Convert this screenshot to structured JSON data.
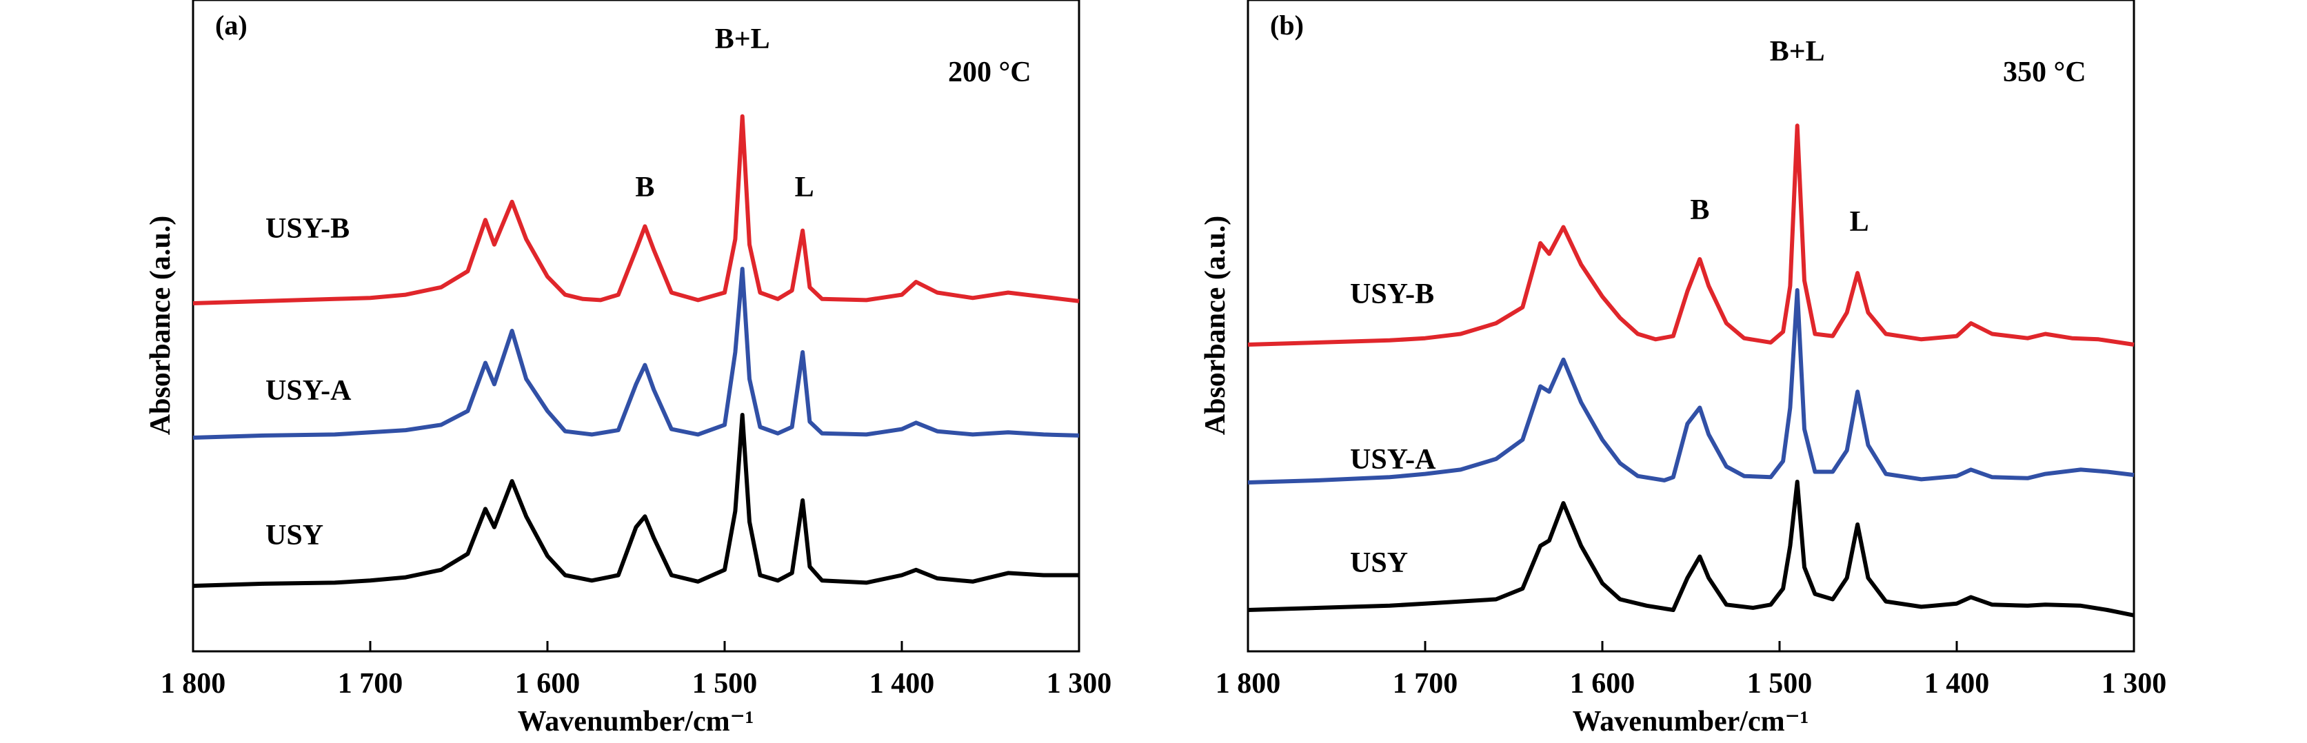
{
  "chart_data": [
    {
      "type": "line",
      "panel_label": "(a)",
      "temperature": "200 °C",
      "xlabel": "Wavenumber/cm⁻¹",
      "ylabel": "Absorbance (a.u.)",
      "xlim": [
        1800,
        1300
      ],
      "x_reversed": true,
      "grid": false,
      "x_ticks": [
        "1 800",
        "1 700",
        "1 600",
        "1 500",
        "1 400",
        "1 300"
      ],
      "peak_labels": [
        {
          "text": "B",
          "x": 1545
        },
        {
          "text": "B+L",
          "x": 1490
        },
        {
          "text": "L",
          "x": 1455
        }
      ],
      "series": [
        {
          "name": "USY-B",
          "color": "#e0262b",
          "baseline": 2.0,
          "points": [
            [
              1800,
              0.0
            ],
            [
              1760,
              0.02
            ],
            [
              1720,
              0.04
            ],
            [
              1700,
              0.05
            ],
            [
              1680,
              0.08
            ],
            [
              1660,
              0.15
            ],
            [
              1645,
              0.3
            ],
            [
              1635,
              0.78
            ],
            [
              1630,
              0.55
            ],
            [
              1620,
              0.95
            ],
            [
              1612,
              0.6
            ],
            [
              1600,
              0.25
            ],
            [
              1590,
              0.08
            ],
            [
              1580,
              0.04
            ],
            [
              1570,
              0.03
            ],
            [
              1560,
              0.08
            ],
            [
              1550,
              0.5
            ],
            [
              1545,
              0.72
            ],
            [
              1540,
              0.5
            ],
            [
              1530,
              0.1
            ],
            [
              1515,
              0.03
            ],
            [
              1500,
              0.1
            ],
            [
              1494,
              0.6
            ],
            [
              1490,
              1.75
            ],
            [
              1486,
              0.55
            ],
            [
              1480,
              0.1
            ],
            [
              1470,
              0.04
            ],
            [
              1462,
              0.12
            ],
            [
              1456,
              0.68
            ],
            [
              1452,
              0.15
            ],
            [
              1445,
              0.04
            ],
            [
              1420,
              0.03
            ],
            [
              1400,
              0.08
            ],
            [
              1392,
              0.2
            ],
            [
              1380,
              0.1
            ],
            [
              1360,
              0.05
            ],
            [
              1340,
              0.1
            ],
            [
              1330,
              0.08
            ],
            [
              1310,
              0.04
            ],
            [
              1300,
              0.02
            ]
          ]
        },
        {
          "name": "USY-A",
          "color": "#3150a6",
          "baseline": 1.0,
          "points": [
            [
              1800,
              0.0
            ],
            [
              1760,
              0.02
            ],
            [
              1720,
              0.03
            ],
            [
              1700,
              0.05
            ],
            [
              1680,
              0.07
            ],
            [
              1660,
              0.12
            ],
            [
              1645,
              0.25
            ],
            [
              1635,
              0.7
            ],
            [
              1630,
              0.5
            ],
            [
              1620,
              1.0
            ],
            [
              1612,
              0.55
            ],
            [
              1600,
              0.25
            ],
            [
              1590,
              0.06
            ],
            [
              1575,
              0.03
            ],
            [
              1560,
              0.07
            ],
            [
              1550,
              0.5
            ],
            [
              1545,
              0.68
            ],
            [
              1540,
              0.45
            ],
            [
              1530,
              0.08
            ],
            [
              1515,
              0.03
            ],
            [
              1500,
              0.12
            ],
            [
              1494,
              0.8
            ],
            [
              1490,
              1.58
            ],
            [
              1486,
              0.55
            ],
            [
              1480,
              0.1
            ],
            [
              1470,
              0.04
            ],
            [
              1462,
              0.1
            ],
            [
              1456,
              0.8
            ],
            [
              1452,
              0.15
            ],
            [
              1445,
              0.04
            ],
            [
              1420,
              0.03
            ],
            [
              1400,
              0.08
            ],
            [
              1392,
              0.14
            ],
            [
              1380,
              0.06
            ],
            [
              1360,
              0.03
            ],
            [
              1340,
              0.05
            ],
            [
              1320,
              0.03
            ],
            [
              1300,
              0.02
            ]
          ]
        },
        {
          "name": "USY",
          "color": "#000000",
          "baseline": 0.0,
          "points": [
            [
              1800,
              0.0
            ],
            [
              1760,
              0.02
            ],
            [
              1720,
              0.03
            ],
            [
              1700,
              0.05
            ],
            [
              1680,
              0.08
            ],
            [
              1660,
              0.15
            ],
            [
              1645,
              0.3
            ],
            [
              1635,
              0.72
            ],
            [
              1630,
              0.55
            ],
            [
              1620,
              0.98
            ],
            [
              1612,
              0.65
            ],
            [
              1600,
              0.28
            ],
            [
              1590,
              0.1
            ],
            [
              1575,
              0.05
            ],
            [
              1560,
              0.1
            ],
            [
              1550,
              0.55
            ],
            [
              1545,
              0.65
            ],
            [
              1540,
              0.45
            ],
            [
              1530,
              0.1
            ],
            [
              1515,
              0.04
            ],
            [
              1500,
              0.15
            ],
            [
              1494,
              0.7
            ],
            [
              1490,
              1.6
            ],
            [
              1486,
              0.6
            ],
            [
              1480,
              0.1
            ],
            [
              1470,
              0.05
            ],
            [
              1462,
              0.12
            ],
            [
              1456,
              0.8
            ],
            [
              1452,
              0.18
            ],
            [
              1445,
              0.05
            ],
            [
              1420,
              0.03
            ],
            [
              1400,
              0.1
            ],
            [
              1392,
              0.15
            ],
            [
              1380,
              0.07
            ],
            [
              1360,
              0.04
            ],
            [
              1340,
              0.12
            ],
            [
              1320,
              0.1
            ],
            [
              1300,
              0.1
            ]
          ]
        }
      ]
    },
    {
      "type": "line",
      "panel_label": "(b)",
      "temperature": "350 °C",
      "xlabel": "Wavenumber/cm⁻¹",
      "ylabel": "Absorbance (a.u.)",
      "xlim": [
        1800,
        1300
      ],
      "x_reversed": true,
      "grid": false,
      "x_ticks": [
        "1 800",
        "1 700",
        "1 600",
        "1 500",
        "1 400",
        "1 300"
      ],
      "peak_labels": [
        {
          "text": "B",
          "x": 1545
        },
        {
          "text": "B+L",
          "x": 1490
        },
        {
          "text": "L",
          "x": 1455
        }
      ],
      "series": [
        {
          "name": "USY-B",
          "color": "#e0262b",
          "baseline": 2.0,
          "points": [
            [
              1800,
              0.0
            ],
            [
              1760,
              0.02
            ],
            [
              1720,
              0.04
            ],
            [
              1700,
              0.06
            ],
            [
              1680,
              0.1
            ],
            [
              1660,
              0.2
            ],
            [
              1645,
              0.35
            ],
            [
              1635,
              0.95
            ],
            [
              1630,
              0.85
            ],
            [
              1622,
              1.1
            ],
            [
              1612,
              0.75
            ],
            [
              1600,
              0.45
            ],
            [
              1590,
              0.25
            ],
            [
              1580,
              0.1
            ],
            [
              1570,
              0.05
            ],
            [
              1560,
              0.08
            ],
            [
              1552,
              0.5
            ],
            [
              1545,
              0.8
            ],
            [
              1540,
              0.55
            ],
            [
              1530,
              0.2
            ],
            [
              1520,
              0.06
            ],
            [
              1505,
              0.02
            ],
            [
              1498,
              0.12
            ],
            [
              1494,
              0.55
            ],
            [
              1490,
              2.05
            ],
            [
              1486,
              0.6
            ],
            [
              1480,
              0.1
            ],
            [
              1470,
              0.08
            ],
            [
              1462,
              0.3
            ],
            [
              1456,
              0.67
            ],
            [
              1450,
              0.3
            ],
            [
              1440,
              0.1
            ],
            [
              1420,
              0.05
            ],
            [
              1400,
              0.08
            ],
            [
              1392,
              0.2
            ],
            [
              1380,
              0.1
            ],
            [
              1360,
              0.06
            ],
            [
              1350,
              0.1
            ],
            [
              1335,
              0.06
            ],
            [
              1320,
              0.05
            ],
            [
              1300,
              0.0
            ]
          ]
        },
        {
          "name": "USY-A",
          "color": "#3150a6",
          "baseline": 1.0,
          "points": [
            [
              1800,
              0.0
            ],
            [
              1760,
              0.02
            ],
            [
              1720,
              0.05
            ],
            [
              1700,
              0.08
            ],
            [
              1680,
              0.12
            ],
            [
              1660,
              0.22
            ],
            [
              1645,
              0.4
            ],
            [
              1635,
              0.9
            ],
            [
              1630,
              0.85
            ],
            [
              1622,
              1.15
            ],
            [
              1612,
              0.75
            ],
            [
              1600,
              0.4
            ],
            [
              1590,
              0.18
            ],
            [
              1580,
              0.06
            ],
            [
              1565,
              0.02
            ],
            [
              1560,
              0.05
            ],
            [
              1552,
              0.55
            ],
            [
              1545,
              0.7
            ],
            [
              1540,
              0.45
            ],
            [
              1530,
              0.15
            ],
            [
              1520,
              0.06
            ],
            [
              1505,
              0.05
            ],
            [
              1498,
              0.2
            ],
            [
              1494,
              0.7
            ],
            [
              1490,
              1.8
            ],
            [
              1486,
              0.5
            ],
            [
              1480,
              0.1
            ],
            [
              1470,
              0.1
            ],
            [
              1462,
              0.3
            ],
            [
              1456,
              0.85
            ],
            [
              1450,
              0.35
            ],
            [
              1440,
              0.08
            ],
            [
              1420,
              0.03
            ],
            [
              1400,
              0.06
            ],
            [
              1392,
              0.12
            ],
            [
              1380,
              0.05
            ],
            [
              1360,
              0.04
            ],
            [
              1350,
              0.08
            ],
            [
              1330,
              0.12
            ],
            [
              1315,
              0.1
            ],
            [
              1300,
              0.07
            ]
          ]
        },
        {
          "name": "USY",
          "color": "#000000",
          "baseline": 0.0,
          "points": [
            [
              1800,
              0.0
            ],
            [
              1760,
              0.02
            ],
            [
              1720,
              0.04
            ],
            [
              1700,
              0.06
            ],
            [
              1680,
              0.08
            ],
            [
              1660,
              0.1
            ],
            [
              1645,
              0.2
            ],
            [
              1635,
              0.6
            ],
            [
              1630,
              0.65
            ],
            [
              1622,
              1.0
            ],
            [
              1612,
              0.6
            ],
            [
              1600,
              0.25
            ],
            [
              1590,
              0.1
            ],
            [
              1575,
              0.04
            ],
            [
              1560,
              0.0
            ],
            [
              1552,
              0.3
            ],
            [
              1545,
              0.5
            ],
            [
              1540,
              0.3
            ],
            [
              1530,
              0.05
            ],
            [
              1515,
              0.02
            ],
            [
              1505,
              0.05
            ],
            [
              1498,
              0.2
            ],
            [
              1494,
              0.6
            ],
            [
              1490,
              1.2
            ],
            [
              1486,
              0.4
            ],
            [
              1480,
              0.15
            ],
            [
              1470,
              0.1
            ],
            [
              1462,
              0.3
            ],
            [
              1456,
              0.8
            ],
            [
              1450,
              0.3
            ],
            [
              1440,
              0.08
            ],
            [
              1420,
              0.03
            ],
            [
              1400,
              0.06
            ],
            [
              1392,
              0.12
            ],
            [
              1380,
              0.05
            ],
            [
              1360,
              0.04
            ],
            [
              1350,
              0.05
            ],
            [
              1330,
              0.04
            ],
            [
              1315,
              0.0
            ],
            [
              1300,
              -0.05
            ]
          ]
        }
      ]
    }
  ]
}
